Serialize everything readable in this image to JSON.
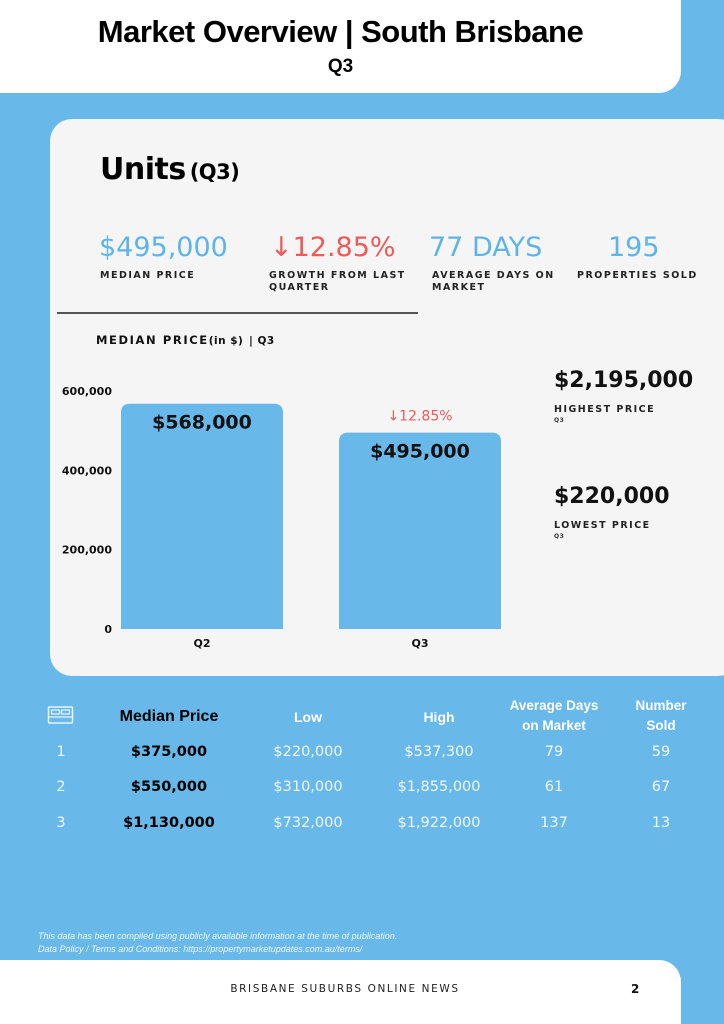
{
  "header": {
    "title": "Market Overview | South Brisbane",
    "subtitle": "Q3"
  },
  "section": {
    "title": "Units",
    "quarter": "(Q3)"
  },
  "stats": [
    {
      "value": "$495,000",
      "label": "MEDIAN PRICE",
      "color": "#5eb4e8"
    },
    {
      "value": "↓12.85%",
      "label": "GROWTH FROM LAST QUARTER",
      "color": "#ee5a5a"
    },
    {
      "value": "77 DAYS",
      "label": "AVERAGE DAYS ON MARKET",
      "color": "#5eb4e8"
    },
    {
      "value": "195",
      "label": "PROPERTIES SOLD",
      "color": "#5eb4e8"
    }
  ],
  "chart_heading": {
    "main": "MEDIAN PRICE",
    "unit": "(in $)",
    "suffix": "| Q3"
  },
  "chart_data": {
    "type": "bar",
    "categories": [
      "Q2",
      "Q3"
    ],
    "values": [
      568000,
      495000
    ],
    "data_labels": [
      "$568,000",
      "$495,000"
    ],
    "annotation": "↓12.85%",
    "ylim": [
      0,
      600000
    ],
    "yticks": [
      0,
      200000,
      400000,
      600000
    ],
    "ytick_labels": [
      "0",
      "200,000",
      "400,000",
      "600,000"
    ],
    "bar_color": "#68b9ea",
    "annotation_color": "#ee5a5a",
    "grid": false
  },
  "side_stats": [
    {
      "value": "$2,195,000",
      "label": "HIGHEST PRICE",
      "quarter": "Q3"
    },
    {
      "value": "$220,000",
      "label": "LOWEST PRICE",
      "quarter": "Q3"
    }
  ],
  "table": {
    "icon": "bed-icon",
    "headers": [
      "Median Price",
      "Low",
      "High",
      "Average Days on Market",
      "Number Sold"
    ],
    "rows": [
      {
        "bedrooms": "1",
        "median": "$375,000",
        "low": "$220,000",
        "high": "$537,300",
        "days": "79",
        "sold": "59"
      },
      {
        "bedrooms": "2",
        "median": "$550,000",
        "low": "$310,000",
        "high": "$1,855,000",
        "days": "61",
        "sold": "67"
      },
      {
        "bedrooms": "3",
        "median": "$1,130,000",
        "low": "$732,000",
        "high": "$1,922,000",
        "days": "137",
        "sold": "13"
      }
    ]
  },
  "footnote": {
    "line1": "This data has been compiled using publicly available information at the time of publication.",
    "line2": "Data Policy / Terms and Conditions: https://propertymarketupdates.com.au/terms/"
  },
  "footer": {
    "text": "BRISBANE SUBURBS ONLINE NEWS",
    "page": "2"
  }
}
